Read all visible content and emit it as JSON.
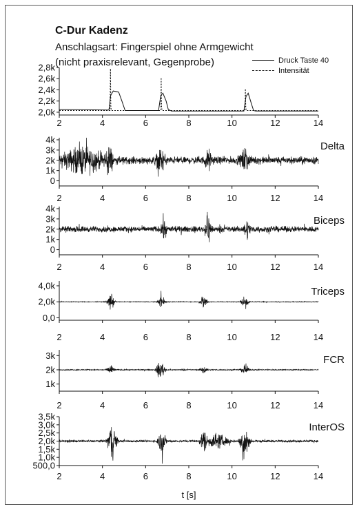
{
  "header": {
    "title": "C-Dur Kadenz",
    "subtitle_line1": "Anschlagsart: Fingerspiel ohne Armgewicht",
    "subtitle_line2": "(nicht praxisrelevant, Gegenprobe)"
  },
  "chart_data": [
    {
      "type": "line",
      "title": "",
      "xlabel": "",
      "ylabel": "",
      "xlim": [
        2,
        14
      ],
      "ylim": [
        1.95,
        2.8
      ],
      "x_ticks": [
        2,
        4,
        6,
        8,
        10,
        12,
        14
      ],
      "y_ticks": [
        {
          "value": 2.0,
          "label": "2,0k"
        },
        {
          "value": 2.2,
          "label": "2,2k"
        },
        {
          "value": 2.4,
          "label": "2,4k"
        },
        {
          "value": 2.6,
          "label": "2,6k"
        },
        {
          "value": 2.8,
          "label": "2,8k"
        }
      ],
      "legend": {
        "position": "top-right"
      },
      "series": [
        {
          "name": "Druck Taste 40",
          "style": "solid",
          "x": [
            2.0,
            4.3,
            4.38,
            4.5,
            4.75,
            4.9,
            5.05,
            6.6,
            6.7,
            6.8,
            6.95,
            7.05,
            7.2,
            10.55,
            10.65,
            10.75,
            10.9,
            11.0,
            11.1,
            14.0
          ],
          "y": [
            2.05,
            2.04,
            2.3,
            2.38,
            2.36,
            2.2,
            2.03,
            2.03,
            2.3,
            2.34,
            2.2,
            2.05,
            2.02,
            2.02,
            2.28,
            2.34,
            2.15,
            2.03,
            2.02,
            2.02
          ]
        },
        {
          "name": "Intensität",
          "style": "dashed",
          "x": [
            2.0,
            4.35,
            4.37,
            4.39,
            4.41,
            6.7,
            6.72,
            6.74,
            6.76,
            10.6,
            10.62,
            10.64,
            10.66,
            14.0
          ],
          "y": [
            2.03,
            2.03,
            2.78,
            2.1,
            2.03,
            2.03,
            2.62,
            2.1,
            2.03,
            2.03,
            2.42,
            2.1,
            2.03,
            2.03
          ]
        }
      ]
    },
    {
      "type": "line",
      "label": "Delta",
      "xlim": [
        2,
        14
      ],
      "ylim": [
        -0.5,
        4.2
      ],
      "x_ticks": [
        2,
        4,
        6,
        8,
        10,
        12,
        14
      ],
      "y_ticks": [
        {
          "value": 0,
          "label": "0"
        },
        {
          "value": 1,
          "label": "1k"
        },
        {
          "value": 2,
          "label": "2k"
        },
        {
          "value": 3,
          "label": "3k"
        },
        {
          "value": 4,
          "label": "4k"
        }
      ],
      "baseline": 2.0,
      "noise_amplitude": 0.5,
      "bursts": [
        {
          "x": 3.1,
          "width": 1.9,
          "amplitude": 1.6
        },
        {
          "x": 4.3,
          "width": 0.3,
          "amplitude": 2.0
        },
        {
          "x": 6.7,
          "width": 0.4,
          "amplitude": 1.4
        },
        {
          "x": 10.6,
          "width": 0.4,
          "amplitude": 1.3
        },
        {
          "x": 8.9,
          "width": 0.3,
          "amplitude": 1.2
        }
      ]
    },
    {
      "type": "line",
      "label": "Biceps",
      "xlim": [
        2,
        14
      ],
      "ylim": [
        -0.5,
        4.2
      ],
      "x_ticks": [
        2,
        4,
        6,
        8,
        10,
        12,
        14
      ],
      "y_ticks": [
        {
          "value": 0,
          "label": "0"
        },
        {
          "value": 1,
          "label": "1k"
        },
        {
          "value": 2,
          "label": "2k"
        },
        {
          "value": 3,
          "label": "3k"
        },
        {
          "value": 4,
          "label": "4k"
        }
      ],
      "baseline": 2.0,
      "noise_amplitude": 0.4,
      "bursts": [
        {
          "x": 6.85,
          "width": 0.2,
          "amplitude": 1.5
        },
        {
          "x": 8.9,
          "width": 0.3,
          "amplitude": 1.6
        },
        {
          "x": 10.7,
          "width": 0.3,
          "amplitude": 1.0
        }
      ]
    },
    {
      "type": "line",
      "label": "Triceps",
      "xlim": [
        2,
        14
      ],
      "ylim": [
        -0.3,
        4.6
      ],
      "x_ticks": [
        2,
        4,
        6,
        8,
        10,
        12,
        14
      ],
      "y_ticks": [
        {
          "value": 0,
          "label": "0,0"
        },
        {
          "value": 2,
          "label": "2,0k"
        },
        {
          "value": 4,
          "label": "4,0k"
        }
      ],
      "baseline": 2.0,
      "noise_amplitude": 0.06,
      "bursts": [
        {
          "x": 4.4,
          "width": 0.3,
          "amplitude": 1.5
        },
        {
          "x": 6.75,
          "width": 0.35,
          "amplitude": 1.0
        },
        {
          "x": 8.7,
          "width": 0.3,
          "amplitude": 1.3
        },
        {
          "x": 10.6,
          "width": 0.3,
          "amplitude": 1.4
        }
      ]
    },
    {
      "type": "line",
      "label": "FCR",
      "xlim": [
        2,
        14
      ],
      "ylim": [
        0.5,
        3.4
      ],
      "x_ticks": [
        2,
        4,
        6,
        8,
        10,
        12,
        14
      ],
      "y_ticks": [
        {
          "value": 1,
          "label": "1k"
        },
        {
          "value": 2,
          "label": "2k"
        },
        {
          "value": 3,
          "label": "3k"
        }
      ],
      "baseline": 2.0,
      "noise_amplitude": 0.05,
      "bursts": [
        {
          "x": 4.4,
          "width": 0.3,
          "amplitude": 0.6
        },
        {
          "x": 6.7,
          "width": 0.4,
          "amplitude": 0.8
        },
        {
          "x": 8.7,
          "width": 0.3,
          "amplitude": 0.4
        },
        {
          "x": 10.6,
          "width": 0.3,
          "amplitude": 0.6
        }
      ]
    },
    {
      "type": "line",
      "label": "InterOS",
      "xlim": [
        2,
        14
      ],
      "ylim": [
        0.5,
        3.5
      ],
      "x_ticks": [
        2,
        4,
        6,
        8,
        10,
        12,
        14
      ],
      "y_ticks": [
        {
          "value": 0.5,
          "label": "500,0"
        },
        {
          "value": 1.0,
          "label": "1,0k"
        },
        {
          "value": 1.5,
          "label": "1,5k"
        },
        {
          "value": 2.0,
          "label": "2,0k"
        },
        {
          "value": 2.5,
          "label": "2,5k"
        },
        {
          "value": 3.0,
          "label": "3,0k"
        },
        {
          "value": 3.5,
          "label": "3,5k"
        }
      ],
      "baseline": 2.0,
      "noise_amplitude": 0.1,
      "bursts": [
        {
          "x": 4.45,
          "width": 0.4,
          "amplitude": 1.5
        },
        {
          "x": 6.75,
          "width": 0.35,
          "amplitude": 1.0
        },
        {
          "x": 8.7,
          "width": 0.3,
          "amplitude": 0.9
        },
        {
          "x": 9.3,
          "width": 1.0,
          "amplitude": 0.6
        },
        {
          "x": 10.6,
          "width": 0.4,
          "amplitude": 1.4
        }
      ],
      "xlabel": "t [s]"
    }
  ]
}
